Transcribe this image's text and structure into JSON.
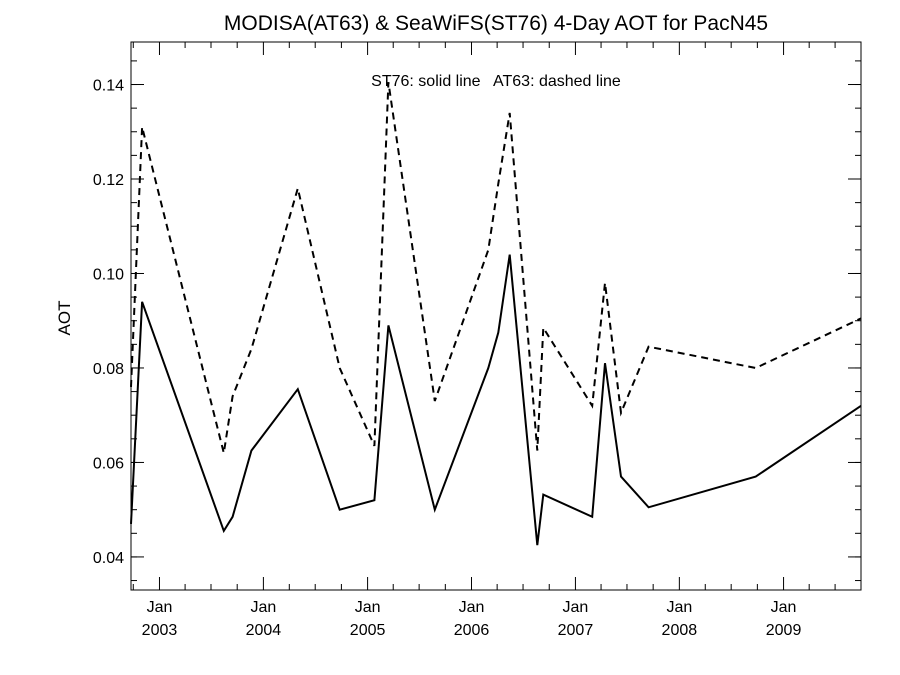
{
  "chart_data": {
    "type": "line",
    "title": "MODISA(AT63) & SeaWiFS(ST76) 4-Day AOT for PacN45",
    "annotation": "ST76: solid line   AT63: dashed line",
    "xlabel": "",
    "ylabel": "AOT",
    "xlim": [
      "2002-09-23",
      "2009-09-30"
    ],
    "ylim": [
      0.033,
      0.149
    ],
    "y_ticks": [
      0.04,
      0.06,
      0.08,
      0.1,
      0.12,
      0.14
    ],
    "y_tick_labels": [
      "0.04",
      "0.06",
      "0.08",
      "0.10",
      "0.12",
      "0.14"
    ],
    "y_minor_step": 0.005,
    "x_ticks": [
      {
        "date": "2003-01-01",
        "month": "Jan",
        "year": "2003"
      },
      {
        "date": "2004-01-01",
        "month": "Jan",
        "year": "2004"
      },
      {
        "date": "2005-01-01",
        "month": "Jan",
        "year": "2005"
      },
      {
        "date": "2006-01-01",
        "month": "Jan",
        "year": "2006"
      },
      {
        "date": "2007-01-01",
        "month": "Jan",
        "year": "2007"
      },
      {
        "date": "2008-01-01",
        "month": "Jan",
        "year": "2008"
      },
      {
        "date": "2009-01-01",
        "month": "Jan",
        "year": "2009"
      }
    ],
    "x_minor_ticks": [
      "2002-10-01",
      "2003-04-01",
      "2003-07-01",
      "2003-10-01",
      "2004-04-01",
      "2004-07-01",
      "2004-10-01",
      "2005-04-01",
      "2005-07-01",
      "2005-10-01",
      "2006-04-01",
      "2006-07-01",
      "2006-10-01",
      "2007-04-01",
      "2007-07-01",
      "2007-10-01",
      "2008-04-01",
      "2008-07-01",
      "2008-10-01",
      "2009-04-01",
      "2009-07-01"
    ],
    "grid": false,
    "series": [
      {
        "name": "ST76",
        "style": "solid",
        "color": "#000000",
        "points": [
          [
            "2002-09-23",
            0.047
          ],
          [
            "2002-11-01",
            0.094
          ],
          [
            "2003-08-15",
            0.0455
          ],
          [
            "2003-09-15",
            0.0485
          ],
          [
            "2003-11-20",
            0.0625
          ],
          [
            "2004-05-01",
            0.0755
          ],
          [
            "2004-09-25",
            0.05
          ],
          [
            "2005-01-25",
            0.052
          ],
          [
            "2005-03-15",
            0.089
          ],
          [
            "2005-08-25",
            0.05
          ],
          [
            "2006-03-01",
            0.08
          ],
          [
            "2006-04-05",
            0.0875
          ],
          [
            "2006-05-15",
            0.104
          ],
          [
            "2006-08-20",
            0.0425
          ],
          [
            "2006-09-10",
            0.0532
          ],
          [
            "2007-03-01",
            0.0485
          ],
          [
            "2007-04-15",
            0.081
          ],
          [
            "2007-06-10",
            0.057
          ],
          [
            "2007-09-15",
            0.0505
          ],
          [
            "2008-09-25",
            0.057
          ],
          [
            "2009-09-30",
            0.072
          ]
        ]
      },
      {
        "name": "AT63",
        "style": "dashed",
        "color": "#000000",
        "points": [
          [
            "2002-09-23",
            0.076
          ],
          [
            "2002-11-01",
            0.131
          ],
          [
            "2003-08-15",
            0.062
          ],
          [
            "2003-09-15",
            0.074
          ],
          [
            "2003-11-20",
            0.084
          ],
          [
            "2004-05-01",
            0.118
          ],
          [
            "2004-09-25",
            0.08
          ],
          [
            "2005-01-25",
            0.0635
          ],
          [
            "2005-03-15",
            0.1405
          ],
          [
            "2005-08-25",
            0.073
          ],
          [
            "2006-03-01",
            0.105
          ],
          [
            "2006-04-05",
            0.119
          ],
          [
            "2006-05-15",
            0.134
          ],
          [
            "2006-08-20",
            0.0625
          ],
          [
            "2006-09-10",
            0.0885
          ],
          [
            "2007-03-01",
            0.072
          ],
          [
            "2007-04-15",
            0.098
          ],
          [
            "2007-06-10",
            0.0705
          ],
          [
            "2007-09-15",
            0.0845
          ],
          [
            "2008-09-25",
            0.08
          ],
          [
            "2009-09-30",
            0.0905
          ]
        ]
      }
    ]
  }
}
